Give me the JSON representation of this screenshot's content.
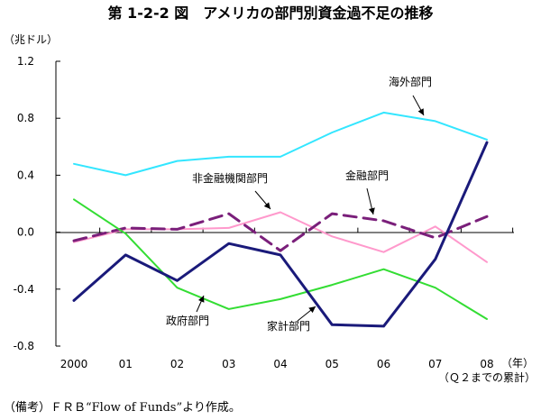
{
  "chart_data": {
    "type": "line",
    "title": "第 1-2-2 図　アメリカの部門別資金過不足の推移",
    "ylabel": "（兆ドル）",
    "xlabel": "（年）",
    "categories": [
      "2000",
      "01",
      "02",
      "03",
      "04",
      "05",
      "06",
      "07",
      "08"
    ],
    "x_note": "（Ｑ２までの累計）",
    "ylim": [
      -0.8,
      1.2
    ],
    "yticks": [
      "1.2",
      "0.8",
      "0.4",
      "0.0",
      "-0.4",
      "-0.8"
    ],
    "ytick_values": [
      1.2,
      0.8,
      0.4,
      0.0,
      -0.4,
      -0.8
    ],
    "grid": false,
    "series": [
      {
        "name": "海外部門",
        "color": "#33e6ff",
        "dash": "",
        "values": [
          0.48,
          0.4,
          0.5,
          0.53,
          0.53,
          0.7,
          0.84,
          0.78,
          0.65
        ]
      },
      {
        "name": "非金融機関部門",
        "color": "#ff99cc",
        "dash": "",
        "values": [
          -0.07,
          0.02,
          0.02,
          0.03,
          0.14,
          -0.03,
          -0.14,
          0.04,
          -0.21
        ]
      },
      {
        "name": "金融部門",
        "color": "#7a1f7a",
        "dash": "14,8",
        "values": [
          -0.06,
          0.03,
          0.02,
          0.13,
          -0.13,
          0.13,
          0.08,
          -0.04,
          0.11
        ]
      },
      {
        "name": "政府部門",
        "color": "#33dd33",
        "dash": "",
        "values": [
          0.23,
          -0.01,
          -0.39,
          -0.54,
          -0.47,
          -0.37,
          -0.26,
          -0.39,
          -0.61
        ]
      },
      {
        "name": "家計部門",
        "color": "#1a1a7a",
        "dash": "",
        "values": [
          -0.48,
          -0.16,
          -0.34,
          -0.08,
          -0.16,
          -0.65,
          -0.66,
          -0.19,
          0.63
        ]
      }
    ]
  },
  "note": "（備考）ＦＲＢ“Flow of Funds”より作成。"
}
